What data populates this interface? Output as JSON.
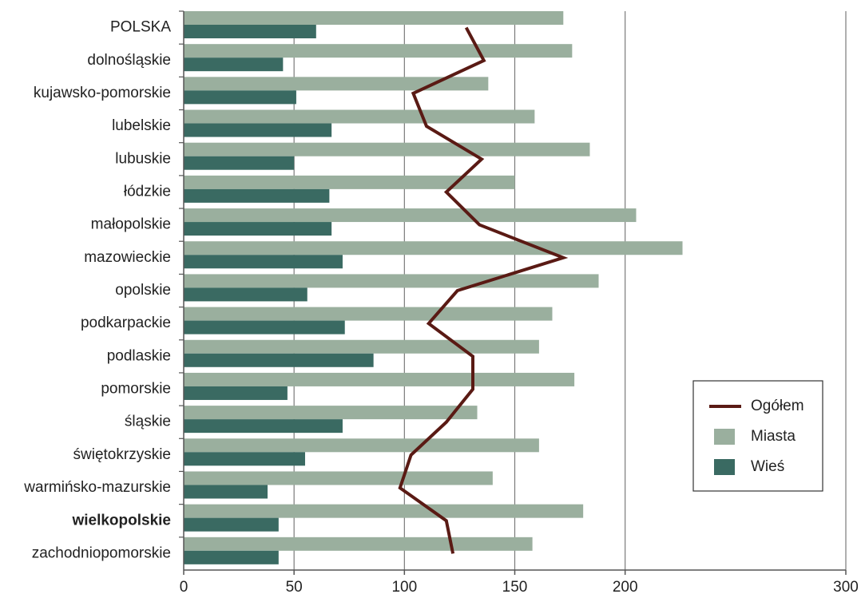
{
  "chart_data": {
    "type": "bar",
    "orientation": "horizontal",
    "title": "",
    "xlabel": "",
    "ylabel": "",
    "xlim": [
      0,
      300
    ],
    "x_ticks": [
      "0",
      "50",
      "100",
      "150",
      "200",
      "300"
    ],
    "x_tick_values": [
      0,
      50,
      100,
      150,
      200,
      300
    ],
    "grid": true,
    "legend_position": "right",
    "categories": [
      "POLSKA",
      "dolnośląskie",
      "kujawsko-pomorskie",
      "lubelskie",
      "lubuskie",
      "łódzkie",
      "małopolskie",
      "mazowieckie",
      "opolskie",
      "podkarpackie",
      "podlaskie",
      "pomorskie",
      "śląskie",
      "świętokrzyskie",
      "warmińsko-mazurskie",
      "wielkopolskie",
      "zachodniopomorskie"
    ],
    "bold_categories": [
      "wielkopolskie"
    ],
    "series": [
      {
        "name": "Ogółem",
        "type": "line",
        "color": "#5a1a14",
        "values": [
          128,
          136,
          104,
          110,
          135,
          119,
          134,
          172,
          124,
          111,
          131,
          131,
          119,
          103,
          98,
          119,
          122
        ]
      },
      {
        "name": "Miasta",
        "type": "bar",
        "color": "#9aaf9e",
        "values": [
          172,
          176,
          138,
          159,
          184,
          150,
          205,
          226,
          188,
          167,
          161,
          177,
          133,
          161,
          140,
          181,
          158
        ]
      },
      {
        "name": "Wieś",
        "type": "bar",
        "color": "#3a6a62",
        "values": [
          60,
          45,
          51,
          67,
          50,
          66,
          67,
          72,
          56,
          73,
          86,
          47,
          72,
          55,
          38,
          43,
          43
        ]
      }
    ]
  }
}
